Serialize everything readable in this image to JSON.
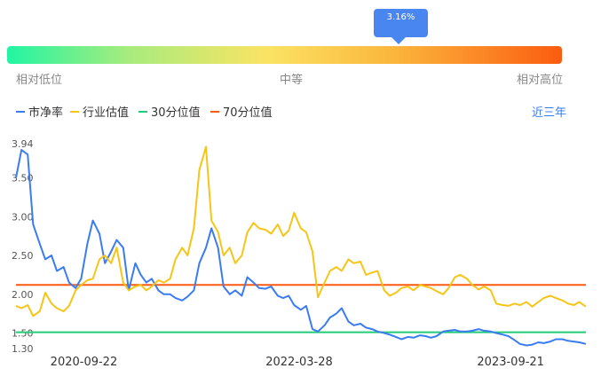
{
  "tooltip": {
    "value": "3.16%"
  },
  "scale": {
    "low": "相对低位",
    "mid": "中等",
    "high": "相对高位"
  },
  "legend": {
    "items": [
      {
        "label": "市净率",
        "color": "#3b7cf0"
      },
      {
        "label": "行业估值",
        "color": "#f5c518"
      },
      {
        "label": "30分位值",
        "color": "#22cc77"
      },
      {
        "label": "70分位值",
        "color": "#ff5a10"
      }
    ]
  },
  "range_link": "近三年",
  "colors": {
    "accent": "#4a86f0",
    "pb": "#3b7cf0",
    "industry": "#f5c518",
    "p30": "#22cc77",
    "p70": "#ff5a10"
  },
  "chart_data": {
    "type": "line",
    "x_ticks": [
      "2020-09-22",
      "2022-03-28",
      "2023-09-21"
    ],
    "y_ticks": [
      3.94,
      3.5,
      3.0,
      2.5,
      2.0,
      1.5,
      1.3
    ],
    "y_tick_labels": [
      "3.94",
      "3.50",
      "3.00",
      "2.50",
      "2.00",
      "1.50",
      "1.30"
    ],
    "ylim": [
      1.3,
      3.94
    ],
    "x_range": [
      "2020-04-01",
      "2024-04-01"
    ],
    "reference_lines": [
      {
        "name": "30分位值",
        "value": 1.51
      },
      {
        "name": "70分位值",
        "value": 2.12
      }
    ],
    "series": [
      {
        "name": "市净率",
        "x": [
          "2020-04-01",
          "2020-04-15",
          "2020-05-01",
          "2020-05-15",
          "2020-06-01",
          "2020-06-15",
          "2020-07-01",
          "2020-07-15",
          "2020-08-01",
          "2020-08-15",
          "2020-09-01",
          "2020-09-15",
          "2020-10-01",
          "2020-10-15",
          "2020-11-01",
          "2020-11-15",
          "2020-12-01",
          "2020-12-15",
          "2021-01-01",
          "2021-01-15",
          "2021-02-01",
          "2021-02-15",
          "2021-03-01",
          "2021-03-15",
          "2021-04-01",
          "2021-04-15",
          "2021-05-01",
          "2021-05-15",
          "2021-06-01",
          "2021-06-15",
          "2021-07-01",
          "2021-07-15",
          "2021-08-01",
          "2021-08-15",
          "2021-09-01",
          "2021-09-15",
          "2021-10-01",
          "2021-10-15",
          "2021-11-01",
          "2021-11-15",
          "2021-12-01",
          "2021-12-15",
          "2022-01-01",
          "2022-01-15",
          "2022-02-01",
          "2022-02-15",
          "2022-03-01",
          "2022-03-15",
          "2022-04-01",
          "2022-04-15",
          "2022-05-01",
          "2022-05-15",
          "2022-06-01",
          "2022-06-15",
          "2022-07-01",
          "2022-07-15",
          "2022-08-01",
          "2022-08-15",
          "2022-09-01",
          "2022-09-15",
          "2022-10-01",
          "2022-10-15",
          "2022-11-01",
          "2022-11-15",
          "2022-12-01",
          "2022-12-15",
          "2023-01-01",
          "2023-01-15",
          "2023-02-01",
          "2023-02-15",
          "2023-03-01",
          "2023-03-15",
          "2023-04-01",
          "2023-04-15",
          "2023-05-01",
          "2023-05-15",
          "2023-06-01",
          "2023-06-15",
          "2023-07-01",
          "2023-07-15",
          "2023-08-01",
          "2023-08-15",
          "2023-09-01",
          "2023-09-15",
          "2023-10-01",
          "2023-10-15",
          "2023-11-01",
          "2023-11-15",
          "2023-12-01",
          "2023-12-15",
          "2024-01-01",
          "2024-01-15",
          "2024-02-01",
          "2024-02-15",
          "2024-03-01",
          "2024-03-15",
          "2024-04-01"
        ],
        "values": [
          3.5,
          3.86,
          3.8,
          2.9,
          2.65,
          2.45,
          2.5,
          2.3,
          2.35,
          2.15,
          2.08,
          2.2,
          2.65,
          2.95,
          2.78,
          2.4,
          2.55,
          2.7,
          2.6,
          2.05,
          2.4,
          2.25,
          2.15,
          2.2,
          2.05,
          2.0,
          2.0,
          1.95,
          1.92,
          1.97,
          2.05,
          2.4,
          2.6,
          2.85,
          2.6,
          2.1,
          2.0,
          2.05,
          1.98,
          2.22,
          2.15,
          2.08,
          2.07,
          2.1,
          1.98,
          1.95,
          1.98,
          1.86,
          1.8,
          1.85,
          1.55,
          1.52,
          1.6,
          1.7,
          1.75,
          1.82,
          1.65,
          1.6,
          1.62,
          1.57,
          1.55,
          1.52,
          1.5,
          1.48,
          1.45,
          1.42,
          1.45,
          1.44,
          1.47,
          1.46,
          1.44,
          1.46,
          1.52,
          1.53,
          1.54,
          1.52,
          1.52,
          1.53,
          1.55,
          1.53,
          1.52,
          1.5,
          1.48,
          1.46,
          1.41,
          1.36,
          1.34,
          1.35,
          1.38,
          1.37,
          1.39,
          1.42,
          1.42,
          1.4,
          1.39,
          1.38,
          1.36
        ]
      },
      {
        "name": "行业估值",
        "x": [
          "2020-04-01",
          "2020-04-15",
          "2020-05-01",
          "2020-05-15",
          "2020-06-01",
          "2020-06-15",
          "2020-07-01",
          "2020-07-15",
          "2020-08-01",
          "2020-08-15",
          "2020-09-01",
          "2020-09-15",
          "2020-10-01",
          "2020-10-15",
          "2020-11-01",
          "2020-11-15",
          "2020-12-01",
          "2020-12-15",
          "2021-01-01",
          "2021-01-15",
          "2021-02-01",
          "2021-02-15",
          "2021-03-01",
          "2021-03-15",
          "2021-04-01",
          "2021-04-15",
          "2021-05-01",
          "2021-05-15",
          "2021-06-01",
          "2021-06-15",
          "2021-07-01",
          "2021-07-15",
          "2021-08-01",
          "2021-08-15",
          "2021-09-01",
          "2021-09-15",
          "2021-10-01",
          "2021-10-15",
          "2021-11-01",
          "2021-11-15",
          "2021-12-01",
          "2021-12-15",
          "2022-01-01",
          "2022-01-15",
          "2022-02-01",
          "2022-02-15",
          "2022-03-01",
          "2022-03-15",
          "2022-04-01",
          "2022-04-15",
          "2022-05-01",
          "2022-05-15",
          "2022-06-01",
          "2022-06-15",
          "2022-07-01",
          "2022-07-15",
          "2022-08-01",
          "2022-08-15",
          "2022-09-01",
          "2022-09-15",
          "2022-10-01",
          "2022-10-15",
          "2022-11-01",
          "2022-11-15",
          "2022-12-01",
          "2022-12-15",
          "2023-01-01",
          "2023-01-15",
          "2023-02-01",
          "2023-02-15",
          "2023-03-01",
          "2023-03-15",
          "2023-04-01",
          "2023-04-15",
          "2023-05-01",
          "2023-05-15",
          "2023-06-01",
          "2023-06-15",
          "2023-07-01",
          "2023-07-15",
          "2023-08-01",
          "2023-08-15",
          "2023-09-01",
          "2023-09-15",
          "2023-10-01",
          "2023-10-15",
          "2023-11-01",
          "2023-11-15",
          "2023-12-01",
          "2023-12-15",
          "2024-01-01",
          "2024-01-15",
          "2024-02-01",
          "2024-02-15",
          "2024-03-01",
          "2024-03-15",
          "2024-04-01"
        ],
        "values": [
          1.85,
          1.82,
          1.86,
          1.72,
          1.78,
          2.02,
          1.88,
          1.82,
          1.78,
          1.85,
          2.05,
          2.12,
          2.18,
          2.2,
          2.45,
          2.5,
          2.4,
          2.6,
          2.15,
          2.05,
          2.1,
          2.12,
          2.05,
          2.1,
          2.18,
          2.15,
          2.2,
          2.45,
          2.6,
          2.5,
          2.85,
          3.6,
          3.9,
          2.95,
          2.8,
          2.5,
          2.6,
          2.4,
          2.5,
          2.8,
          2.92,
          2.85,
          2.83,
          2.78,
          2.9,
          2.75,
          2.82,
          3.05,
          2.85,
          2.8,
          2.55,
          1.96,
          2.15,
          2.3,
          2.35,
          2.3,
          2.45,
          2.4,
          2.42,
          2.25,
          2.28,
          2.3,
          2.05,
          1.98,
          2.02,
          2.08,
          2.1,
          2.05,
          2.12,
          2.1,
          2.08,
          2.04,
          2.0,
          2.08,
          2.22,
          2.25,
          2.2,
          2.12,
          2.06,
          2.1,
          2.05,
          1.88,
          1.86,
          1.85,
          1.88,
          1.86,
          1.9,
          1.84,
          1.9,
          1.95,
          1.98,
          1.95,
          1.92,
          1.88,
          1.86,
          1.9,
          1.84
        ]
      }
    ]
  }
}
